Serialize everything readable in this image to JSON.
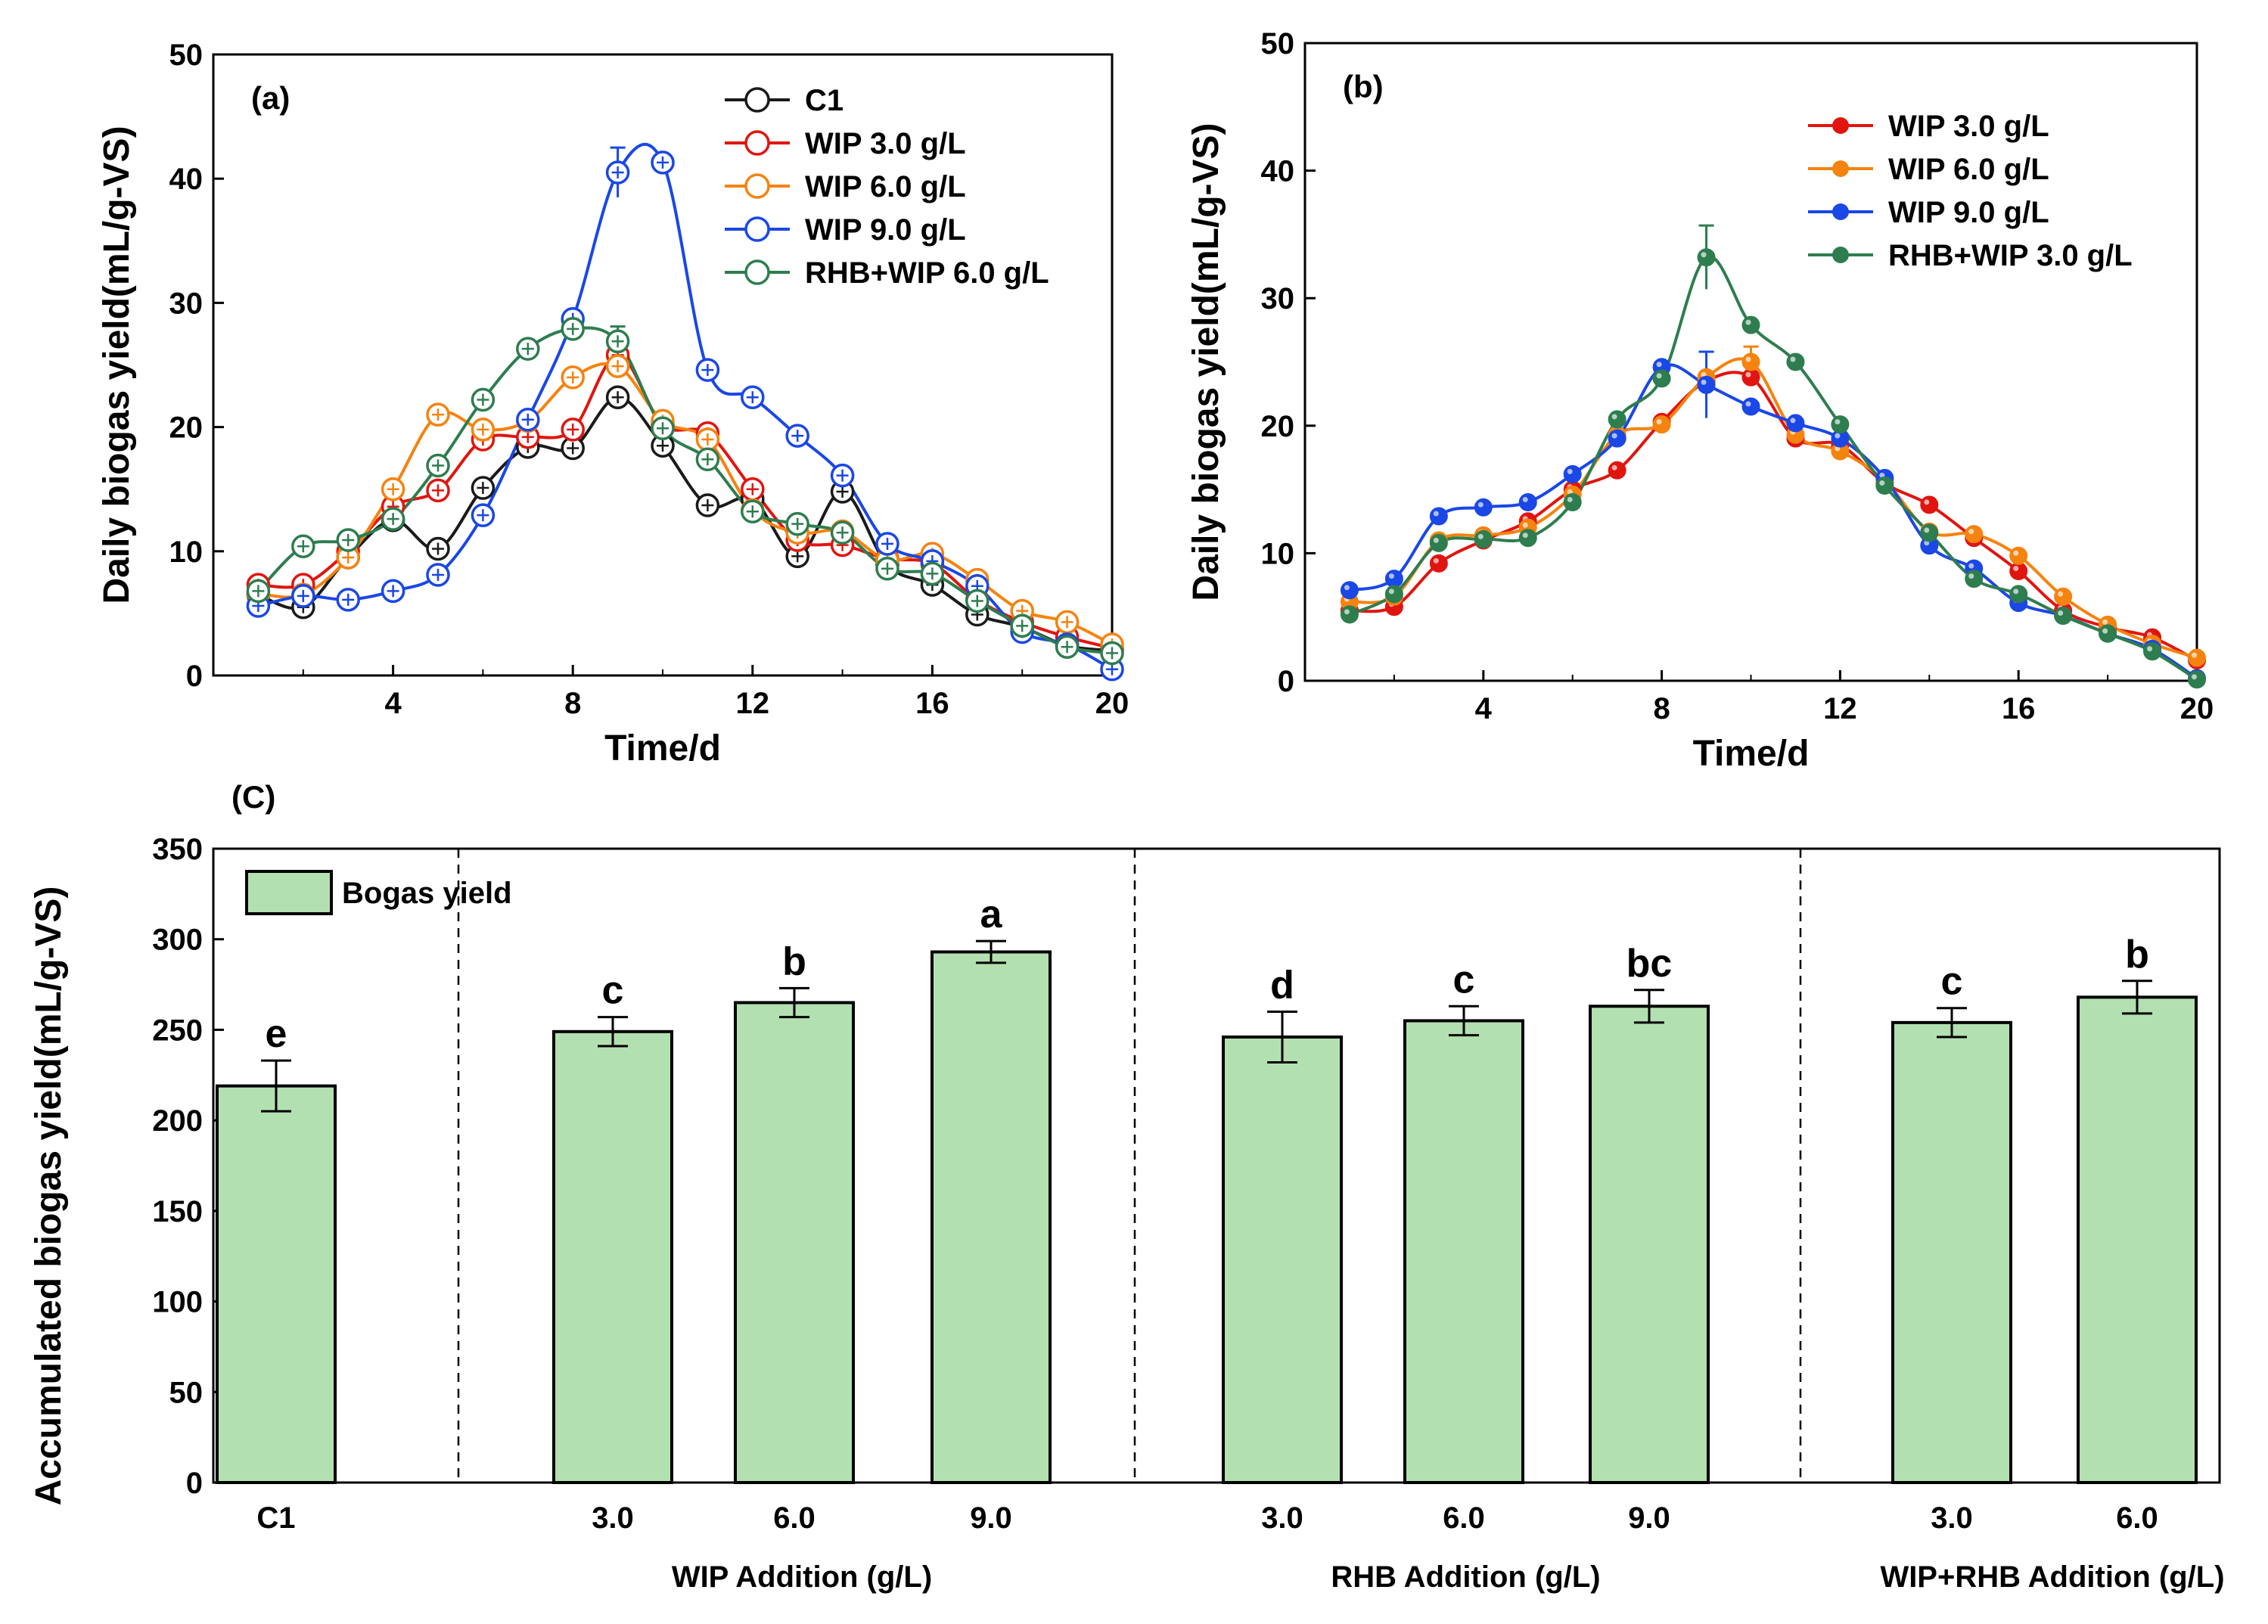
{
  "chart_data": [
    {
      "id": "a",
      "type": "line",
      "panel_label": "(a)",
      "xlabel": "Time/d",
      "ylabel": "Daily biogas yield(mL/g-VS)",
      "xlim": [
        0,
        20
      ],
      "ylim": [
        0,
        50
      ],
      "xticks": [
        4,
        8,
        12,
        16,
        20
      ],
      "yticks": [
        0,
        10,
        20,
        30,
        40,
        50
      ],
      "marker": "open-circle",
      "legend_position": "top-right",
      "x": [
        1,
        2,
        3,
        4,
        5,
        6,
        7,
        8,
        9,
        10,
        11,
        12,
        13,
        14,
        15,
        16,
        17,
        18,
        19,
        20
      ],
      "series": [
        {
          "name": "C1",
          "color": "#1a1a1a",
          "values": [
            6.5,
            5.5,
            9.5,
            12.5,
            10.2,
            15.1,
            18.4,
            18.3,
            22.4,
            18.5,
            13.7,
            14.2,
            9.6,
            14.8,
            8.9,
            7.3,
            4.9,
            3.9,
            2.4,
            2.0
          ]
        },
        {
          "name": "WIP 3.0 g/L",
          "color": "#e0150f",
          "values": [
            7.3,
            7.3,
            10.0,
            13.6,
            14.9,
            19.0,
            19.2,
            19.8,
            25.8,
            20.2,
            19.5,
            15.0,
            10.9,
            10.5,
            9.4,
            9.0,
            6.1,
            4.3,
            3.1,
            2.2
          ]
        },
        {
          "name": "WIP 6.0 g/L",
          "color": "#f5830f",
          "values": [
            6.6,
            6.5,
            9.5,
            15.0,
            21.0,
            19.8,
            20.5,
            24.0,
            24.9,
            20.5,
            19.0,
            13.3,
            11.5,
            11.6,
            9.3,
            9.8,
            7.7,
            5.2,
            4.3,
            2.5
          ]
        },
        {
          "name": "WIP 9.0 g/L",
          "color": "#1a47e6",
          "values": [
            5.6,
            6.4,
            6.1,
            6.8,
            8.1,
            12.9,
            20.6,
            28.7,
            40.5,
            41.3,
            24.6,
            22.4,
            19.3,
            16.1,
            10.6,
            9.2,
            7.2,
            3.5,
            2.5,
            0.5
          ]
        },
        {
          "name": "RHB+WIP 6.0 g/L",
          "color": "#2e7d4f",
          "values": [
            6.8,
            10.4,
            10.9,
            12.6,
            16.9,
            22.2,
            26.3,
            27.9,
            26.9,
            19.9,
            17.4,
            13.2,
            12.2,
            11.5,
            8.6,
            8.2,
            6.0,
            4.0,
            2.3,
            1.8
          ]
        }
      ],
      "error_bars": [
        {
          "series": "WIP 9.0 g/L",
          "x": 9,
          "err": 2.0
        },
        {
          "series": "WIP 3.0 g/L",
          "x": 9,
          "err": 1.0
        },
        {
          "series": "RHB+WIP 6.0 g/L",
          "x": 9,
          "err": 1.2
        }
      ]
    },
    {
      "id": "b",
      "type": "line",
      "panel_label": "(b)",
      "xlabel": "Time/d",
      "ylabel": "Daily biogas yield(mL/g-VS)",
      "xlim": [
        0,
        20
      ],
      "ylim": [
        0,
        50
      ],
      "xticks": [
        4,
        8,
        12,
        16,
        20
      ],
      "yticks": [
        0,
        10,
        20,
        30,
        40,
        50
      ],
      "marker": "filled-sphere",
      "legend_position": "top-right",
      "x": [
        1,
        2,
        3,
        4,
        5,
        6,
        7,
        8,
        9,
        10,
        11,
        12,
        13,
        14,
        15,
        16,
        17,
        18,
        19,
        20
      ],
      "series": [
        {
          "name": "WIP 3.0 g/L",
          "color": "#e0150f",
          "values": [
            5.5,
            5.8,
            9.2,
            11.0,
            12.5,
            15.0,
            16.5,
            20.3,
            23.5,
            23.8,
            19.0,
            18.5,
            15.5,
            13.8,
            11.2,
            8.6,
            5.5,
            4.2,
            3.4,
            1.6
          ]
        },
        {
          "name": "WIP 6.0 g/L",
          "color": "#f5830f",
          "values": [
            6.2,
            6.6,
            11.0,
            11.4,
            12.0,
            14.6,
            19.3,
            20.1,
            23.8,
            25.0,
            19.3,
            18.0,
            15.7,
            11.7,
            11.5,
            9.8,
            6.6,
            4.4,
            2.9,
            1.8
          ]
        },
        {
          "name": "WIP 9.0 g/L",
          "color": "#1a47e6",
          "values": [
            7.1,
            8.0,
            12.9,
            13.6,
            14.0,
            16.2,
            19.0,
            24.6,
            23.2,
            21.5,
            20.2,
            19.0,
            15.9,
            10.6,
            8.8,
            6.1,
            5.1,
            3.7,
            2.5,
            0.2
          ]
        },
        {
          "name": "RHB+WIP 3.0 g/L",
          "color": "#2e7d4f",
          "values": [
            5.2,
            6.8,
            10.8,
            11.1,
            11.2,
            14.0,
            20.5,
            23.7,
            33.2,
            27.9,
            25.0,
            20.1,
            15.3,
            11.6,
            8.0,
            6.8,
            5.1,
            3.7,
            2.3,
            0.1
          ]
        }
      ],
      "error_bars": [
        {
          "series": "RHB+WIP 3.0 g/L",
          "x": 9,
          "err": 2.5
        },
        {
          "series": "WIP 9.0 g/L",
          "x": 9,
          "err": 2.6
        },
        {
          "series": "WIP 6.0 g/L",
          "x": 10,
          "err": 1.2
        }
      ]
    },
    {
      "id": "c",
      "type": "bar",
      "panel_label": "(C)",
      "ylabel": "Accumulated biogas yield(mL/g-VS)",
      "ylim": [
        0,
        350
      ],
      "yticks": [
        0,
        50,
        100,
        150,
        200,
        250,
        300,
        350
      ],
      "bar_color": "#b3e0b0",
      "legend": [
        "Bogas yield"
      ],
      "legend_position": "top-left",
      "categories": [
        "C1",
        "3.0",
        "6.0",
        "9.0",
        "3.0",
        "6.0",
        "9.0",
        "3.0",
        "6.0"
      ],
      "values": [
        219,
        249,
        265,
        293,
        246,
        255,
        263,
        254,
        268
      ],
      "errors": [
        14,
        8,
        8,
        6,
        14,
        8,
        9,
        8,
        9
      ],
      "significance": [
        "e",
        "c",
        "b",
        "a",
        "d",
        "c",
        "bc",
        "c",
        "b"
      ],
      "groups": [
        {
          "label": "",
          "count": 1
        },
        {
          "label": "WIP Addition (g/L)",
          "count": 3
        },
        {
          "label": "RHB Addition (g/L)",
          "count": 3
        },
        {
          "label": "WIP+RHB Addition (g/L)",
          "count": 2
        }
      ]
    }
  ]
}
